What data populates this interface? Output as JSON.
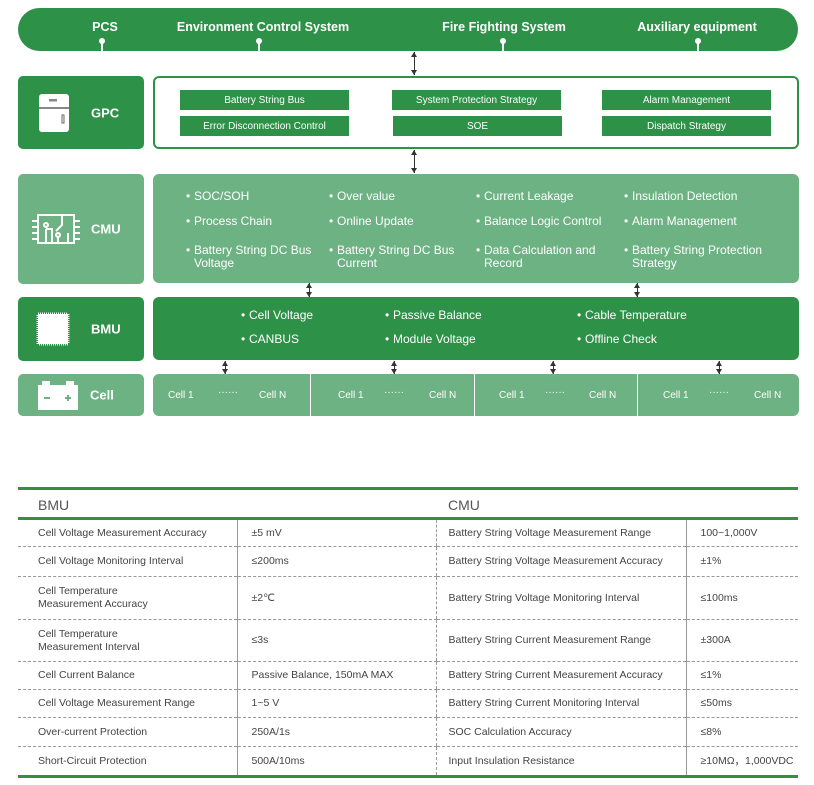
{
  "top": [
    "PCS",
    "Environment Control System",
    "Fire Fighting System",
    "Auxiliary equipment"
  ],
  "gpc": {
    "label": "GPC",
    "buttons": [
      "Battery String Bus",
      "System Protection Strategy",
      "Alarm Management",
      "Error Disconnection Control",
      "SOE",
      "Dispatch Strategy"
    ]
  },
  "cmu": {
    "label": "CMU",
    "items": [
      "SOC/SOH",
      "Over value",
      "Current Leakage",
      "Insulation Detection",
      "Process Chain",
      "Online Update",
      "Balance Logic Control",
      "Alarm Management",
      "Battery String DC Bus Voltage",
      "Battery String DC Bus Current",
      "Data Calculation and Record",
      "Battery String Protection Strategy"
    ]
  },
  "bmu": {
    "label": "BMU",
    "items": [
      "Cell Voltage",
      "Passive Balance",
      "Cable Temperature",
      "CANBUS",
      "Module Voltage",
      "Offline Check"
    ]
  },
  "cell": {
    "label": "Cell",
    "first": "Cell 1",
    "dots": "······",
    "last": "Cell N"
  },
  "colors": {
    "dark_green": "#2e9148",
    "light_green": "#6db283"
  },
  "table": {
    "bmu_header": "BMU",
    "cmu_header": "CMU",
    "rows": [
      [
        "Cell Voltage Measurement Accuracy",
        "±5 mV",
        "Battery String Voltage Measurement Range",
        "100~1,000V"
      ],
      [
        "Cell Voltage Monitoring Interval",
        "≤200ms",
        "Battery String Voltage Measurement Accuracy",
        "±1%"
      ],
      [
        "Cell Temperature Measurement Accuracy",
        "±2℃",
        "Battery String Voltage Monitoring Interval",
        "≤100ms"
      ],
      [
        "Cell Temperature Measurement Interval",
        "≤3s",
        "Battery String Current Measurement Range",
        "±300A"
      ],
      [
        "Cell Current Balance",
        "Passive Balance, 150mA MAX",
        "Battery String Current Measurement Accuracy",
        "≤1%"
      ],
      [
        "Cell Voltage Measurement Range",
        "1~5 V",
        "Battery String Current Monitoring Interval",
        "≤50ms"
      ],
      [
        "Over-current Protection",
        "250A/1s",
        "SOC Calculation Accuracy",
        "≤8%"
      ],
      [
        "Short-Circuit Protection",
        "500A/10ms",
        "Input Insulation Resistance",
        "≥10MΩ，1,000VDC"
      ]
    ]
  }
}
